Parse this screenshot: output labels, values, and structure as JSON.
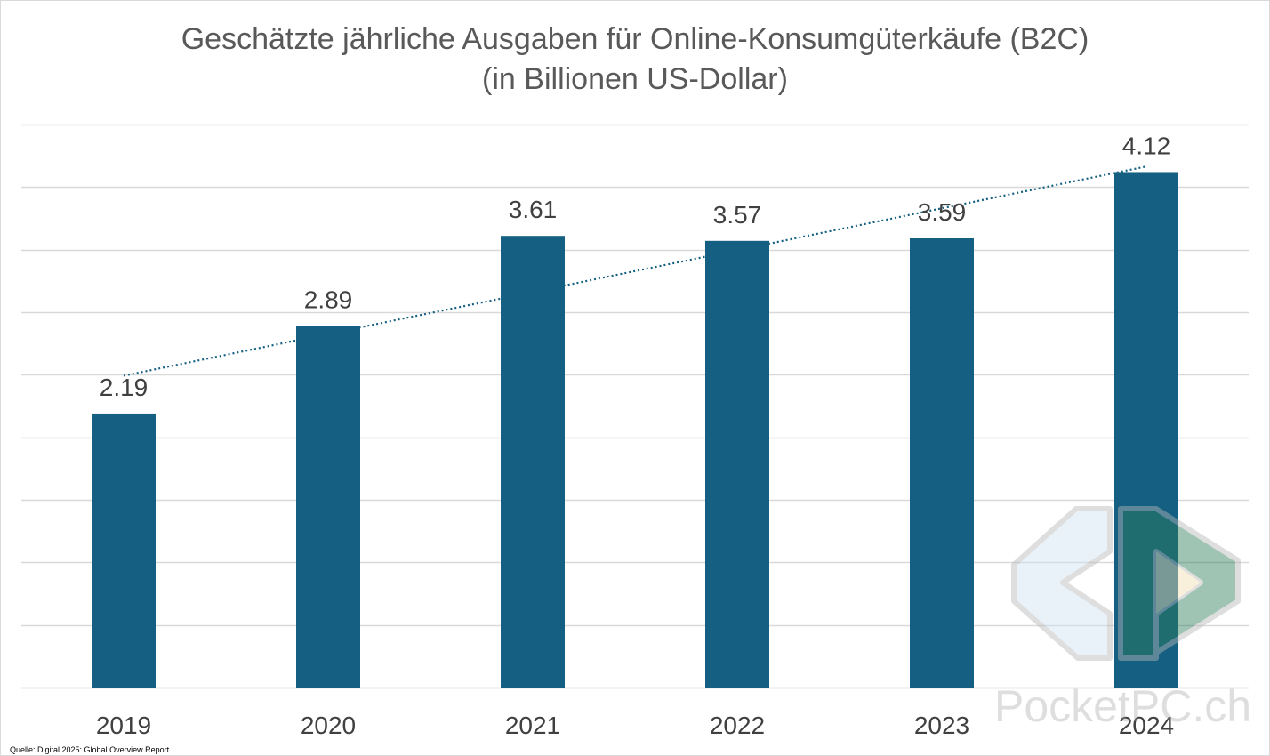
{
  "chart_data": {
    "type": "bar",
    "title_lines": [
      "Geschätzte jährliche Ausgaben für Online-Konsumgüterkäufe (B2C)",
      "(in Billionen US-Dollar)"
    ],
    "categories": [
      "2019",
      "2020",
      "2021",
      "2022",
      "2023",
      "2024"
    ],
    "values": [
      2.19,
      2.89,
      3.61,
      3.57,
      3.59,
      4.12
    ],
    "data_labels": [
      "2.19",
      "2.89",
      "3.61",
      "3.57",
      "3.59",
      "4.12"
    ],
    "ylim": [
      0,
      4.5
    ],
    "gridlines": true,
    "trendline": "linear, dotted",
    "bar_color": "#156082",
    "trend_color": "#156082"
  },
  "source": "Quelle: Digital 2025: Global Overview Report",
  "watermark": "PocketPC.ch"
}
